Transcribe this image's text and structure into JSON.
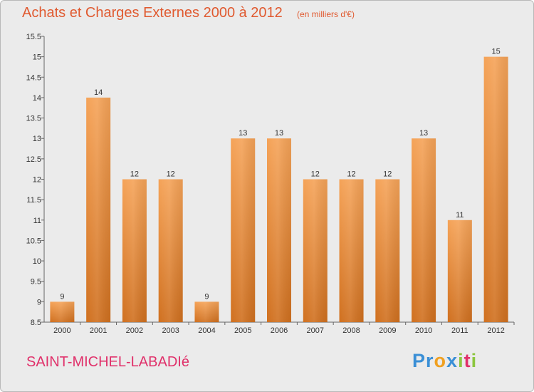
{
  "chart_data": {
    "type": "bar",
    "title": "Achats et Charges Externes 2000 à 2012",
    "subtitle": "(en milliers d'€)",
    "categories": [
      "2000",
      "2001",
      "2002",
      "2003",
      "2004",
      "2005",
      "2006",
      "2007",
      "2008",
      "2009",
      "2010",
      "2011",
      "2012"
    ],
    "values": [
      9,
      14,
      12,
      12,
      9,
      13,
      13,
      12,
      12,
      12,
      13,
      11,
      15
    ],
    "ylim": [
      8.5,
      15.5
    ],
    "yticks": [
      8.5,
      9,
      9.5,
      10,
      10.5,
      11,
      11.5,
      12,
      12.5,
      13,
      13.5,
      14,
      14.5,
      15,
      15.5
    ],
    "ytick_labels": [
      "8.5",
      "9",
      "9.5",
      "10",
      "10.5",
      "11",
      "11.5",
      "12",
      "12.5",
      "13",
      "13.5",
      "14",
      "14.5",
      "15",
      "15.5"
    ],
    "xlabel": "",
    "ylabel": "",
    "grid": false,
    "legend": "none"
  },
  "footer": {
    "commune": "SAINT-MICHEL-LABADIé",
    "logo_letters": [
      "P",
      "r",
      "o",
      "x",
      "i",
      "t",
      "i"
    ]
  },
  "colors": {
    "title": "#e05a30",
    "commune": "#e0306a",
    "bar_top": "#f5a358",
    "bar_bottom": "#d0701f",
    "background": "#ebebeb",
    "logo": [
      "#3a8fd6",
      "#3a8fd6",
      "#f0a020",
      "#3a8fd6",
      "#8cc63f",
      "#e0306a",
      "#8cc63f"
    ]
  }
}
